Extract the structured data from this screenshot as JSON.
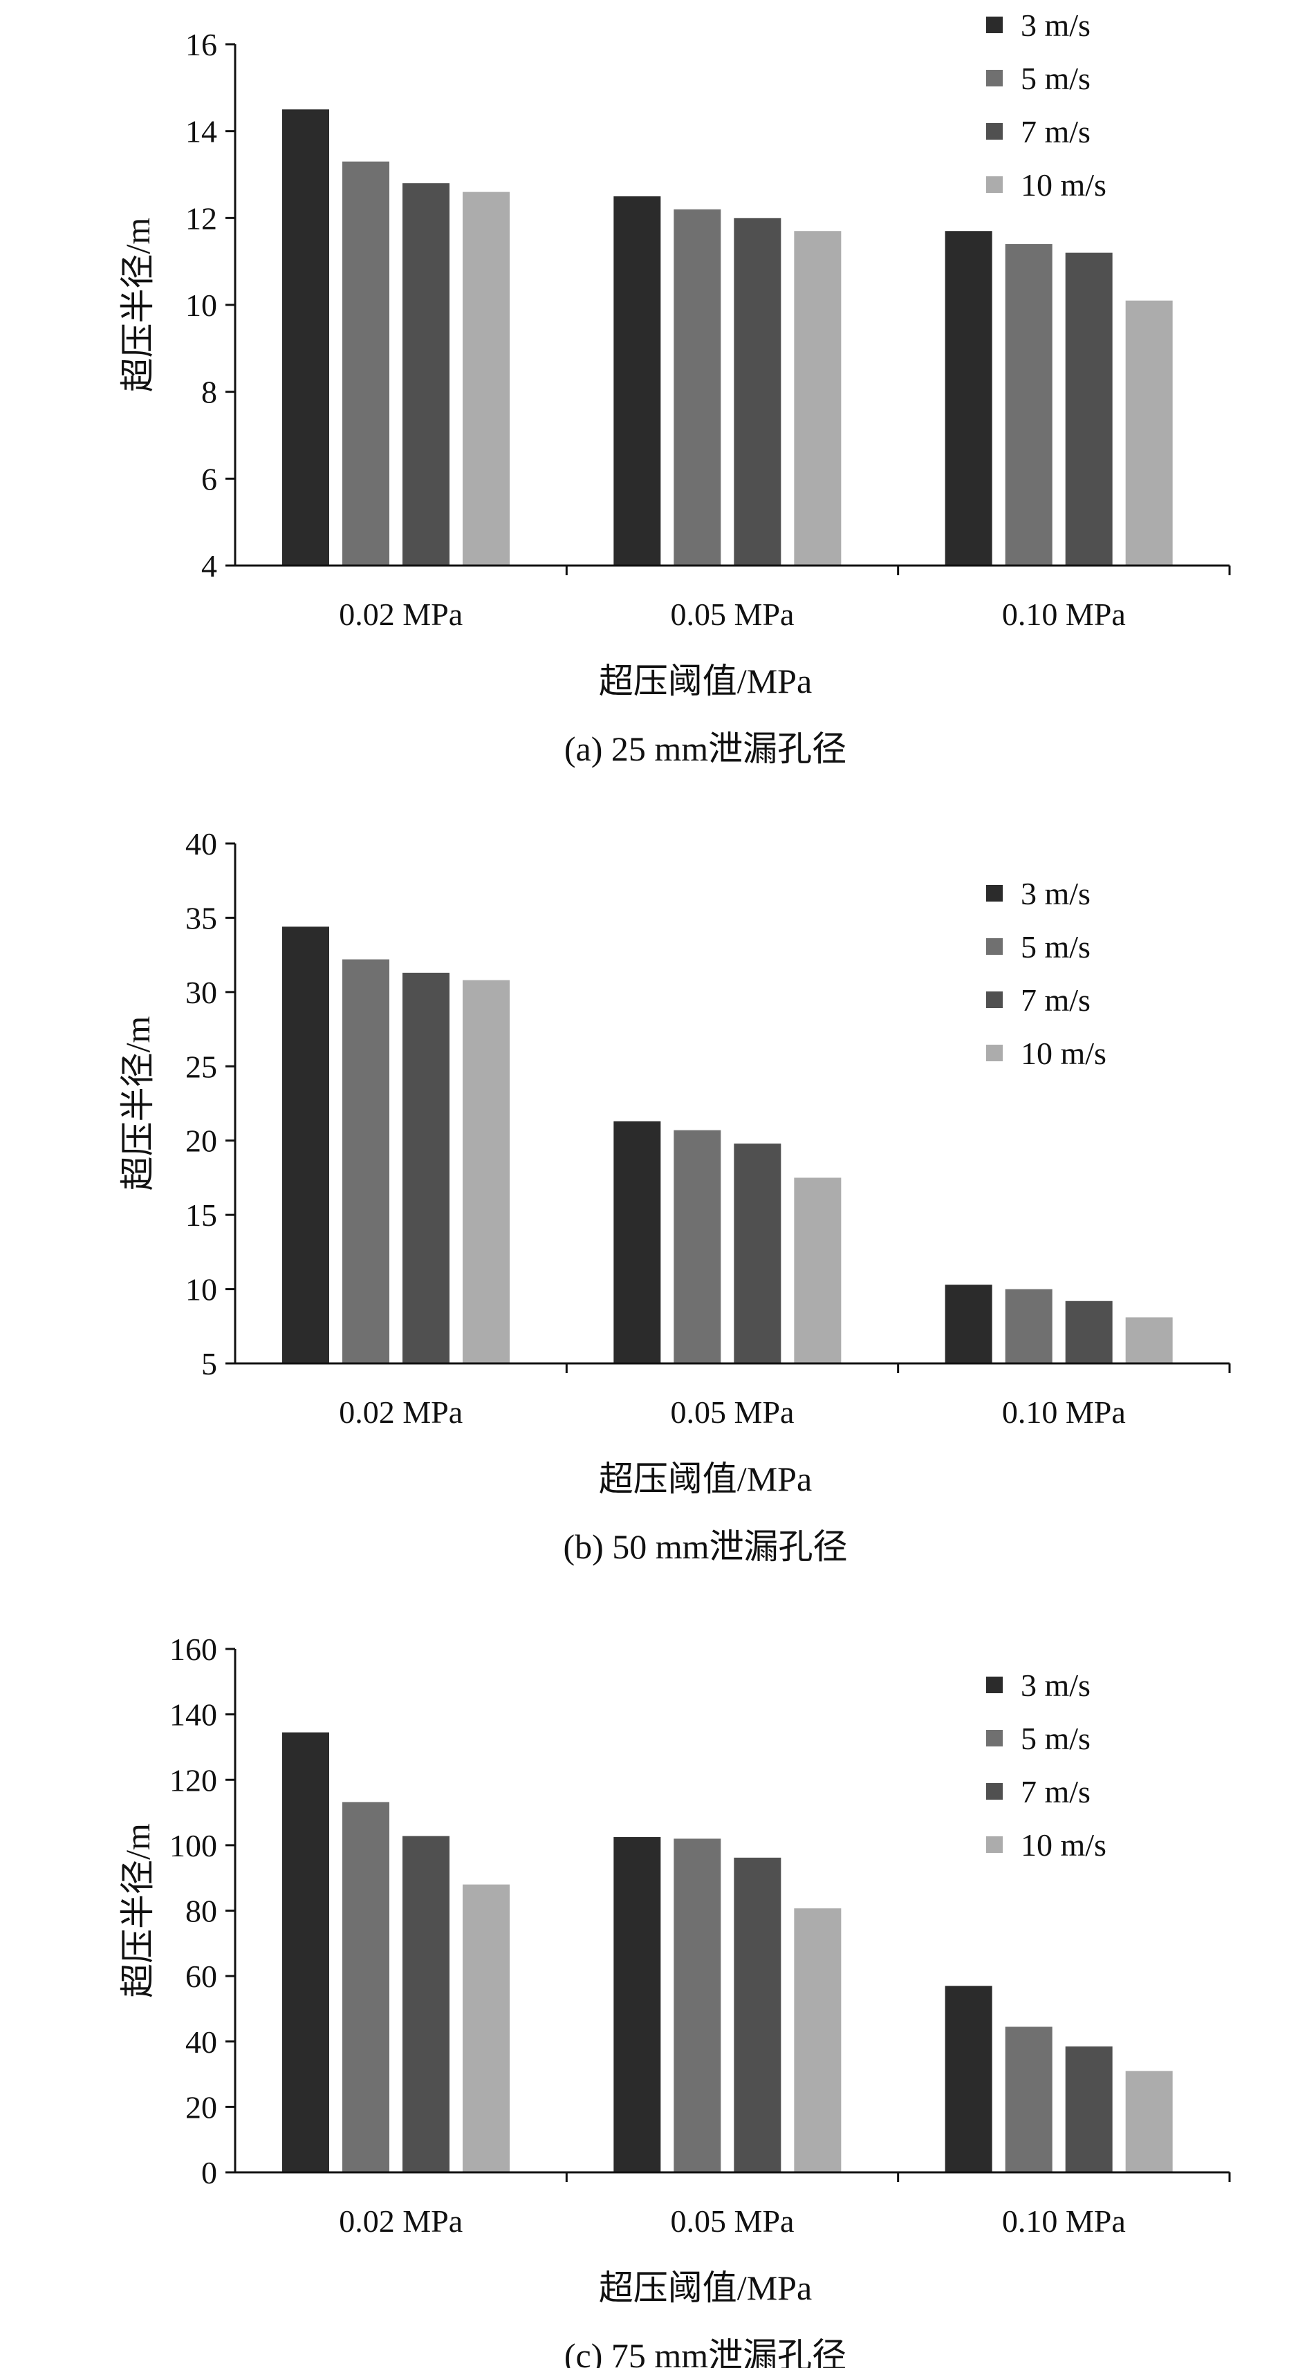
{
  "colors": {
    "axis": "#111111",
    "series": [
      "#2b2b2b",
      "#707070",
      "#505050",
      "#acacac"
    ]
  },
  "chart_data": [
    {
      "type": "bar",
      "caption": "(a) 25 mm泄漏孔径",
      "xlabel": "超压阈值/MPa",
      "ylabel": "超压半径/m",
      "categories": [
        "0.02 MPa",
        "0.05 MPa",
        "0.10 MPa"
      ],
      "ylim": [
        4,
        16
      ],
      "yticks": [
        4,
        6,
        8,
        10,
        12,
        14,
        16
      ],
      "legend_position": "top-right",
      "series": [
        {
          "name": "3 m/s",
          "values": [
            14.5,
            12.5,
            11.7
          ]
        },
        {
          "name": "5 m/s",
          "values": [
            13.3,
            12.2,
            11.4
          ]
        },
        {
          "name": "7 m/s",
          "values": [
            12.8,
            12.0,
            11.2
          ]
        },
        {
          "name": "10 m/s",
          "values": [
            12.6,
            11.7,
            10.1
          ]
        }
      ]
    },
    {
      "type": "bar",
      "caption": "(b) 50 mm泄漏孔径",
      "xlabel": "超压阈值/MPa",
      "ylabel": "超压半径/m",
      "categories": [
        "0.02 MPa",
        "0.05 MPa",
        "0.10 MPa"
      ],
      "ylim": [
        5,
        40
      ],
      "yticks": [
        5,
        10,
        15,
        20,
        25,
        30,
        35,
        40
      ],
      "legend_position": "top-right",
      "series": [
        {
          "name": "3 m/s",
          "values": [
            34.4,
            21.3,
            10.3
          ]
        },
        {
          "name": "5 m/s",
          "values": [
            32.2,
            20.7,
            10.0
          ]
        },
        {
          "name": "7 m/s",
          "values": [
            31.3,
            19.8,
            9.2
          ]
        },
        {
          "name": "10 m/s",
          "values": [
            30.8,
            17.5,
            8.1
          ]
        }
      ]
    },
    {
      "type": "bar",
      "caption": "(c) 75 mm泄漏孔径",
      "xlabel": "超压阈值/MPa",
      "ylabel": "超压半径/m",
      "categories": [
        "0.02 MPa",
        "0.05 MPa",
        "0.10 MPa"
      ],
      "ylim": [
        0,
        160
      ],
      "yticks": [
        0,
        20,
        40,
        60,
        80,
        100,
        120,
        140,
        160
      ],
      "legend_position": "top-right",
      "series": [
        {
          "name": "3 m/s",
          "values": [
            134.5,
            102.5,
            57.0
          ]
        },
        {
          "name": "5 m/s",
          "values": [
            113.2,
            102.0,
            44.5
          ]
        },
        {
          "name": "7 m/s",
          "values": [
            102.8,
            96.2,
            38.5
          ]
        },
        {
          "name": "10 m/s",
          "values": [
            88.0,
            80.7,
            31.0
          ]
        }
      ]
    }
  ]
}
